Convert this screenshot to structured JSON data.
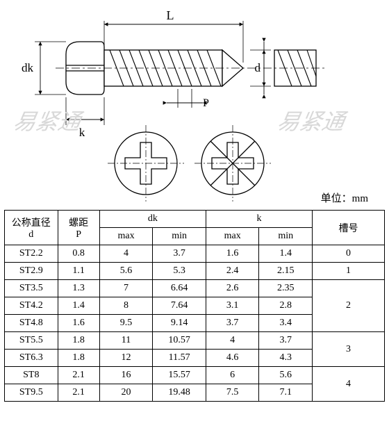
{
  "diagram": {
    "labels": {
      "L": "L",
      "dk": "dk",
      "k": "k",
      "P": "P",
      "d": "d"
    },
    "watermark_text": "易紧通",
    "colors": {
      "stroke": "#000000",
      "fill": "#ffffff",
      "hatch": "#000000",
      "watermark": "#e0e0e0"
    },
    "line_width": 1.2
  },
  "unit_label": "单位：mm",
  "table": {
    "headers": {
      "d": "公称直径",
      "d_sub": "d",
      "P": "螺距",
      "P_sub": "P",
      "dk": "dk",
      "k": "k",
      "slot": "槽号",
      "max": "max",
      "min": "min"
    },
    "rows": [
      {
        "d": "ST2.2",
        "P": "0.8",
        "dk_max": "4",
        "dk_min": "3.7",
        "k_max": "1.6",
        "k_min": "1.4",
        "slot": "0",
        "slot_span": 1
      },
      {
        "d": "ST2.9",
        "P": "1.1",
        "dk_max": "5.6",
        "dk_min": "5.3",
        "k_max": "2.4",
        "k_min": "2.15",
        "slot": "1",
        "slot_span": 1
      },
      {
        "d": "ST3.5",
        "P": "1.3",
        "dk_max": "7",
        "dk_min": "6.64",
        "k_max": "2.6",
        "k_min": "2.35",
        "slot": "2",
        "slot_span": 3
      },
      {
        "d": "ST4.2",
        "P": "1.4",
        "dk_max": "8",
        "dk_min": "7.64",
        "k_max": "3.1",
        "k_min": "2.8"
      },
      {
        "d": "ST4.8",
        "P": "1.6",
        "dk_max": "9.5",
        "dk_min": "9.14",
        "k_max": "3.7",
        "k_min": "3.4"
      },
      {
        "d": "ST5.5",
        "P": "1.8",
        "dk_max": "11",
        "dk_min": "10.57",
        "k_max": "4",
        "k_min": "3.7",
        "slot": "3",
        "slot_span": 2
      },
      {
        "d": "ST6.3",
        "P": "1.8",
        "dk_max": "12",
        "dk_min": "11.57",
        "k_max": "4.6",
        "k_min": "4.3"
      },
      {
        "d": "ST8",
        "P": "2.1",
        "dk_max": "16",
        "dk_min": "15.57",
        "k_max": "6",
        "k_min": "5.6",
        "slot": "4",
        "slot_span": 2
      },
      {
        "d": "ST9.5",
        "P": "2.1",
        "dk_max": "20",
        "dk_min": "19.48",
        "k_max": "7.5",
        "k_min": "7.1"
      }
    ]
  }
}
